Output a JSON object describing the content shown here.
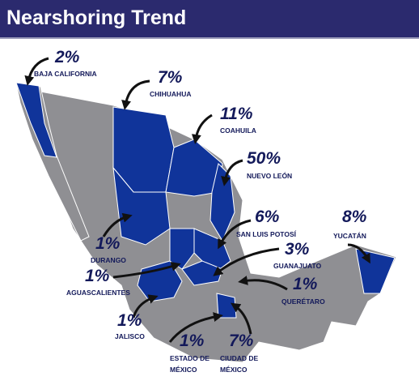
{
  "header": {
    "title": "Nearshoring Trend"
  },
  "regions": [
    {
      "percent": "2%",
      "name": [
        "BAJA CALIFORNIA"
      ]
    },
    {
      "percent": "7%",
      "name": [
        "CHIHUAHUA"
      ]
    },
    {
      "percent": "11%",
      "name": [
        "COAHUILA"
      ]
    },
    {
      "percent": "50%",
      "name": [
        "NUEVO LEÓN"
      ]
    },
    {
      "percent": "6%",
      "name": [
        "SAN LUIS POTOSÍ"
      ]
    },
    {
      "percent": "8%",
      "name": [
        "YUCATÁN"
      ]
    },
    {
      "percent": "1%",
      "name": [
        "DURANGO"
      ]
    },
    {
      "percent": "3%",
      "name": [
        "GUANAJUATO"
      ]
    },
    {
      "percent": "1%",
      "name": [
        "AGUASCALIENTES"
      ]
    },
    {
      "percent": "1%",
      "name": [
        "QUERÉTARO"
      ]
    },
    {
      "percent": "1%",
      "name": [
        "JALISCO"
      ]
    },
    {
      "percent": "1%",
      "name": [
        "ESTADO DE",
        "MÉXICO"
      ]
    },
    {
      "percent": "7%",
      "name": [
        "CIUDAD DE",
        "MÉXICO"
      ]
    }
  ]
}
